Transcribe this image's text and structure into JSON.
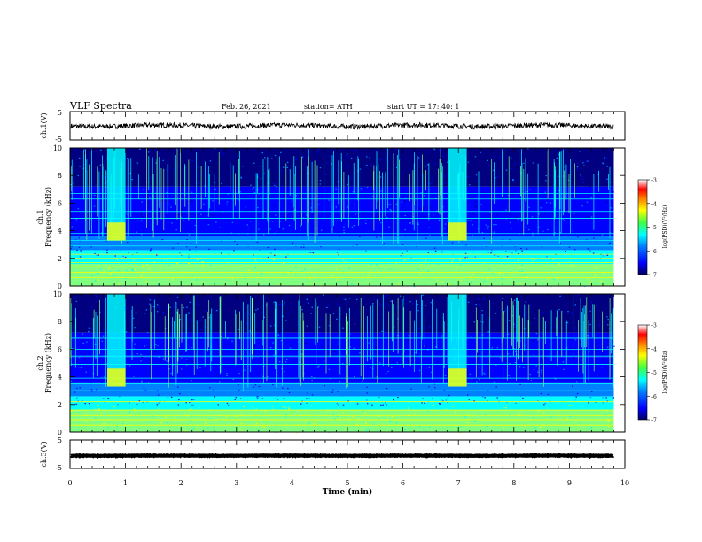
{
  "header": {
    "title": "VLF Spectra",
    "date": "Feb. 26, 2021",
    "station": "station= ATH",
    "start": "start  UT =   17: 40: 1"
  },
  "chart_data": [
    {
      "type": "line",
      "name": "ch1-voltage",
      "ylabel": "ch.1(V)",
      "ylim": [
        -5,
        5
      ],
      "yticks": [
        "5",
        "-5"
      ],
      "series": [
        {
          "mean": 0.0,
          "amplitude": 0.9
        }
      ]
    },
    {
      "type": "heatmap",
      "name": "ch1-spectrogram",
      "ylabel_line1": "ch.1",
      "ylabel_line2": "Frequency (kHz)",
      "ylim": [
        0,
        10
      ],
      "yticks": [
        "0",
        "2",
        "4",
        "6",
        "8",
        "10"
      ],
      "xlim": [
        0,
        10
      ],
      "bursts_min": [
        [
          0.67,
          1.0
        ],
        [
          6.82,
          7.15
        ]
      ],
      "lines_khz": [
        6.7,
        6.3,
        5.4,
        4.9,
        3.8,
        3.3,
        2.9,
        2.3,
        2.0,
        1.7,
        1.4,
        1.0,
        0.6
      ],
      "colorbar": {
        "label": "log(PSD)(V²/Hz)",
        "ticks": [
          "-3",
          "-4",
          "-5",
          "-6",
          "-7"
        ],
        "range": [
          -7,
          -3
        ]
      }
    },
    {
      "type": "heatmap",
      "name": "ch2-spectrogram",
      "ylabel_line1": "ch.2",
      "ylabel_line2": "Frequency (kHz)",
      "ylim": [
        0,
        10
      ],
      "yticks": [
        "0",
        "2",
        "4",
        "6",
        "8",
        "10"
      ],
      "xlim": [
        0,
        10
      ],
      "bursts_min": [
        [
          0.67,
          1.0
        ],
        [
          6.82,
          7.15
        ]
      ],
      "lines_khz": [
        6.8,
        6.0,
        5.5,
        4.9,
        3.9,
        3.5,
        3.0,
        2.2,
        1.9,
        1.6,
        1.2,
        0.9,
        0.5
      ],
      "colorbar": {
        "label": "log(PSD)(V²/Hz)",
        "ticks": [
          "-3",
          "-4",
          "-5",
          "-6",
          "-7"
        ],
        "range": [
          -7,
          -3
        ]
      }
    },
    {
      "type": "line",
      "name": "ch3-voltage",
      "ylabel": "ch.3(V)",
      "ylim": [
        -5,
        5
      ],
      "yticks": [
        "5",
        "-5"
      ],
      "series": [
        {
          "mean": -0.5,
          "amplitude": 0.1
        }
      ]
    }
  ],
  "x_axis": {
    "label": "Time (min)",
    "range": [
      0,
      10
    ],
    "ticks": [
      "0",
      "1",
      "2",
      "3",
      "4",
      "5",
      "6",
      "7",
      "8",
      "9",
      "10"
    ],
    "data_end_min": 9.8
  },
  "colors": {
    "colormap": [
      "#000080",
      "#0000ff",
      "#0080ff",
      "#00ffff",
      "#80ff80",
      "#ffff00",
      "#ff8000",
      "#ff0000",
      "#ffffff"
    ]
  }
}
